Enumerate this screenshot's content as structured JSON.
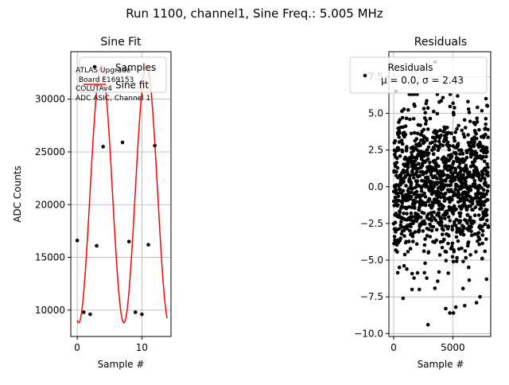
{
  "suptitle": "Run 1100, channel1, Sine Freq.: 5.005 MHz",
  "chart_data": [
    {
      "type": "line",
      "title": "Sine Fit",
      "xlabel": "Sample #",
      "ylabel": "ADC Counts",
      "xlim": [
        -1,
        14.5
      ],
      "ylim": [
        7500,
        34500
      ],
      "xticks": [
        0,
        10
      ],
      "yticks": [
        10000,
        15000,
        20000,
        25000,
        30000
      ],
      "grid": true,
      "legend": {
        "placement": "top-right",
        "entries": [
          "Samples",
          "Sine fit"
        ]
      },
      "annotation": [
        "ATLAS Upgrade",
        "Board E169153",
        "COLUTAv4",
        "ADC ASIC, Channel 1"
      ],
      "series": [
        {
          "name": "Samples",
          "kind": "scatter",
          "color": "#000000",
          "x": [
            0,
            1,
            2,
            3,
            4,
            7,
            8,
            9,
            10,
            11,
            12
          ],
          "y": [
            16600,
            9800,
            9600,
            16100,
            25500,
            25900,
            16500,
            9800,
            9600,
            16200,
            25600
          ]
        },
        {
          "name": "Sine fit",
          "kind": "line",
          "color": "#ff0000",
          "model": {
            "offset": 21000,
            "amplitude": 12200,
            "period": 6.99,
            "phase_x": 0.22
          }
        }
      ]
    },
    {
      "type": "scatter",
      "title": "Residuals",
      "xlabel": "Sample #",
      "ylabel": "",
      "xlim": [
        -400,
        8200
      ],
      "ylim": [
        -10.2,
        9.2
      ],
      "xticks": [
        0,
        5000
      ],
      "yticks": [
        -10.0,
        -7.5,
        -5.0,
        -2.5,
        0.0,
        2.5,
        5.0,
        7.5
      ],
      "grid": true,
      "legend": {
        "placement": "top-right",
        "entries": [
          "Residuals\n$\\mu$ = 0.0, $\\sigma$ = 2.43"
        ]
      },
      "series": [
        {
          "name": "Residuals",
          "color": "#000000",
          "sample_count": 8000,
          "distribution": {
            "mean": 0.0,
            "sigma": 2.43
          },
          "x": [
            2900,
            4400,
            4750,
            5050,
            5250,
            6000,
            7000,
            7300,
            7850,
            200,
            800,
            3500,
            7800
          ],
          "y": [
            -9.4,
            -8.3,
            -8.6,
            -8.6,
            -8.2,
            -8.1,
            -7.9,
            -7.5,
            -6.3,
            6.5,
            -7.6,
            8.5,
            6.0
          ]
        }
      ]
    }
  ]
}
